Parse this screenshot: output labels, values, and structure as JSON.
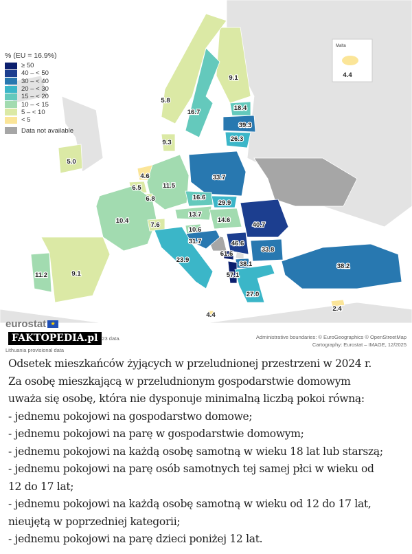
{
  "legend": {
    "title": "% (EU = 16.9%)",
    "classes": [
      {
        "label": "≥ 50",
        "color": "#0b1f6e"
      },
      {
        "label": "40 – < 50",
        "color": "#1c3e8f"
      },
      {
        "label": "30 – < 40",
        "color": "#2878b0"
      },
      {
        "label": "20 – < 30",
        "color": "#3bb6c8"
      },
      {
        "label": "15 – < 20",
        "color": "#64c9bc"
      },
      {
        "label": "10 – < 15",
        "color": "#a2dbb0"
      },
      {
        "label": "5 – < 10",
        "color": "#dbe9a5"
      },
      {
        "label": "< 5",
        "color": "#fbe598"
      }
    ],
    "na": {
      "label": "Data not available",
      "color": "#a6a6a6"
    }
  },
  "inset": {
    "title": "Malta",
    "value": "4.4"
  },
  "values": [
    "9.1",
    "5.8",
    "16.7",
    "18.4",
    "39.3",
    "26.3",
    "9.3",
    "5.0",
    "4.6",
    "6.5",
    "11.5",
    "6.8",
    "33.7",
    "16.6",
    "29.9",
    "13.7",
    "14.6",
    "40.7",
    "10.4",
    "7.6",
    "10.6",
    "31.7",
    "46.6",
    "33.8",
    "61.6",
    "38.1",
    "57.1",
    "23.9",
    "27.0",
    "38.2",
    "11.2",
    "9.1",
    "4.4",
    "2.4"
  ],
  "footer": {
    "logo": "eurostat",
    "note1": "2023 data.",
    "note2": "Lithuania provisional data",
    "credit1": "Administrative boundaries: © EuroGeographics © OpenStreetMap",
    "credit2": "Cartography: Eurostat – IMAGE, 12/2025",
    "watermark": "FAKTOPEDIA.pl"
  },
  "caption": [
    "Odsetek mieszkańców żyjących w przeludnionej przestrzeni w 2024 r.",
    "Za osobę mieszkającą w przeludnionym gospodarstwie domowym",
    "uważa się osobę, która nie dysponuje minimalną liczbą pokoi równą:",
    "- jednemu pokojowi na gospodarstwo domowe;",
    "- jednemu pokojowi na parę w gospodarstwie domowym;",
    "- jednemu pokojowi na każdą osobę samotną w wieku 18 lat lub starszą;",
    "- jednemu pokojowi na parę osób samotnych tej samej płci w wieku od",
    "12 do 17 lat;",
    "- jednemu pokojowi na każdą osobę samotną w wieku od 12 do 17 lat,",
    "nieujętą w poprzedniej kategorii;",
    "- jednemu pokojowi na parę dzieci poniżej 12 lat."
  ]
}
